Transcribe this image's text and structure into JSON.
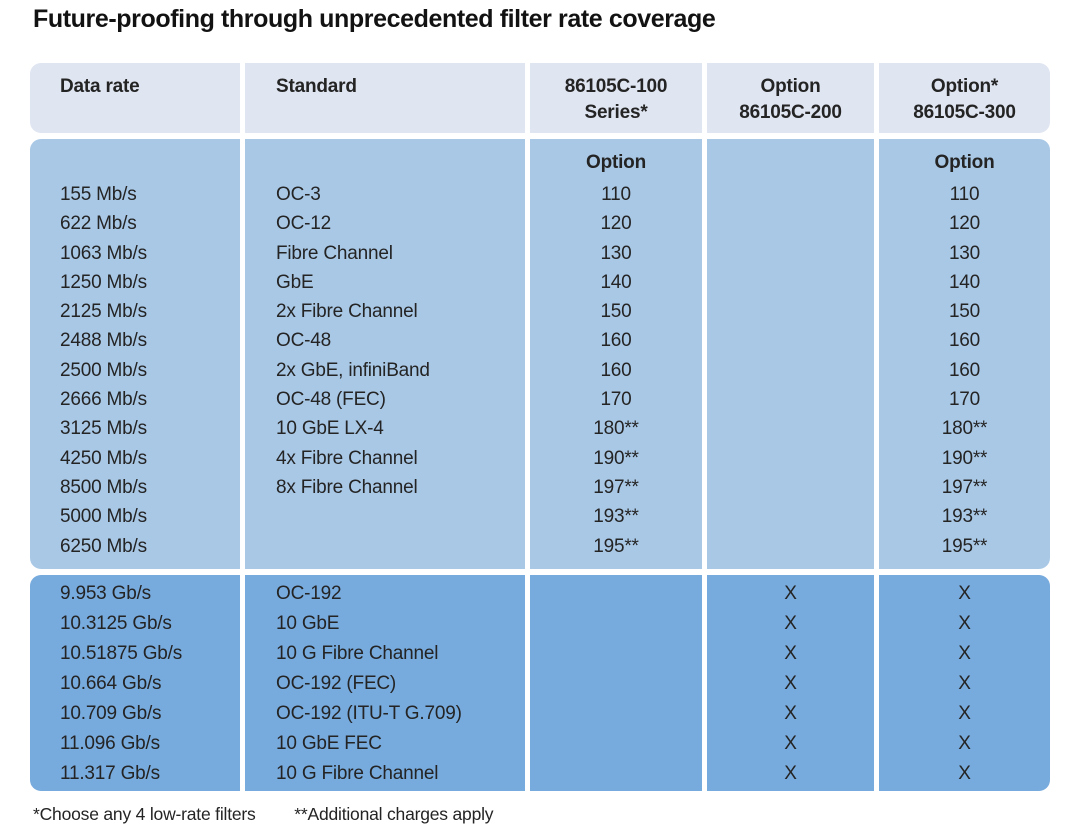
{
  "title": "Future-proofing through unprecedented filter rate coverage",
  "header": {
    "col1": [
      "Data rate",
      ""
    ],
    "col2": [
      "Standard",
      ""
    ],
    "col3": [
      "86105C-100",
      "Series*"
    ],
    "col4": [
      "Option",
      "86105C-200"
    ],
    "col5": [
      "Option*",
      "86105C-300"
    ]
  },
  "section_low_rate": {
    "option_subheader": "Option",
    "rows": [
      {
        "rate": "155 Mb/s",
        "standard": "OC-3",
        "opt100": "110",
        "opt200": "",
        "opt300": "110"
      },
      {
        "rate": "622 Mb/s",
        "standard": "OC-12",
        "opt100": "120",
        "opt200": "",
        "opt300": "120"
      },
      {
        "rate": "1063 Mb/s",
        "standard": "Fibre Channel",
        "opt100": "130",
        "opt200": "",
        "opt300": "130"
      },
      {
        "rate": "1250 Mb/s",
        "standard": "GbE",
        "opt100": "140",
        "opt200": "",
        "opt300": "140"
      },
      {
        "rate": "2125 Mb/s",
        "standard": "2x Fibre Channel",
        "opt100": "150",
        "opt200": "",
        "opt300": "150"
      },
      {
        "rate": "2488 Mb/s",
        "standard": "OC-48",
        "opt100": "160",
        "opt200": "",
        "opt300": "160"
      },
      {
        "rate": "2500 Mb/s",
        "standard": "2x GbE, infiniBand",
        "opt100": "160",
        "opt200": "",
        "opt300": "160"
      },
      {
        "rate": "2666 Mb/s",
        "standard": "OC-48 (FEC)",
        "opt100": "170",
        "opt200": "",
        "opt300": "170"
      },
      {
        "rate": "3125 Mb/s",
        "standard": "10 GbE LX-4",
        "opt100": "180**",
        "opt200": "",
        "opt300": "180**"
      },
      {
        "rate": "4250 Mb/s",
        "standard": "4x Fibre Channel",
        "opt100": "190**",
        "opt200": "",
        "opt300": "190**"
      },
      {
        "rate": "8500 Mb/s",
        "standard": "8x Fibre Channel",
        "opt100": "197**",
        "opt200": "",
        "opt300": "197**"
      },
      {
        "rate": "5000 Mb/s",
        "standard": "",
        "opt100": "193**",
        "opt200": "",
        "opt300": "193**"
      },
      {
        "rate": "6250 Mb/s",
        "standard": "",
        "opt100": "195**",
        "opt200": "",
        "opt300": "195**"
      }
    ]
  },
  "section_high_rate": {
    "rows": [
      {
        "rate": "9.953 Gb/s",
        "standard": "OC-192",
        "opt100": "",
        "opt200": "X",
        "opt300": "X"
      },
      {
        "rate": "10.3125 Gb/s",
        "standard": "10 GbE",
        "opt100": "",
        "opt200": "X",
        "opt300": "X"
      },
      {
        "rate": "10.51875 Gb/s",
        "standard": "10 G Fibre Channel",
        "opt100": "",
        "opt200": "X",
        "opt300": "X"
      },
      {
        "rate": "10.664 Gb/s",
        "standard": "OC-192 (FEC)",
        "opt100": "",
        "opt200": "X",
        "opt300": "X"
      },
      {
        "rate": "10.709 Gb/s",
        "standard": "OC-192 (ITU-T G.709)",
        "opt100": "",
        "opt200": "X",
        "opt300": "X"
      },
      {
        "rate": "11.096 Gb/s",
        "standard": "10 GbE FEC",
        "opt100": "",
        "opt200": "X",
        "opt300": "X"
      },
      {
        "rate": "11.317 Gb/s",
        "standard": "10 G Fibre Channel",
        "opt100": "",
        "opt200": "X",
        "opt300": "X"
      }
    ]
  },
  "footnotes": [
    "*Choose any 4 low-rate filters",
    "**Additional charges apply"
  ],
  "colors": {
    "header_bg": "#dfe5f1",
    "low_rate_bg": "#a9c8e6",
    "high_rate_bg": "#77aadd",
    "text_color": "#242424"
  }
}
